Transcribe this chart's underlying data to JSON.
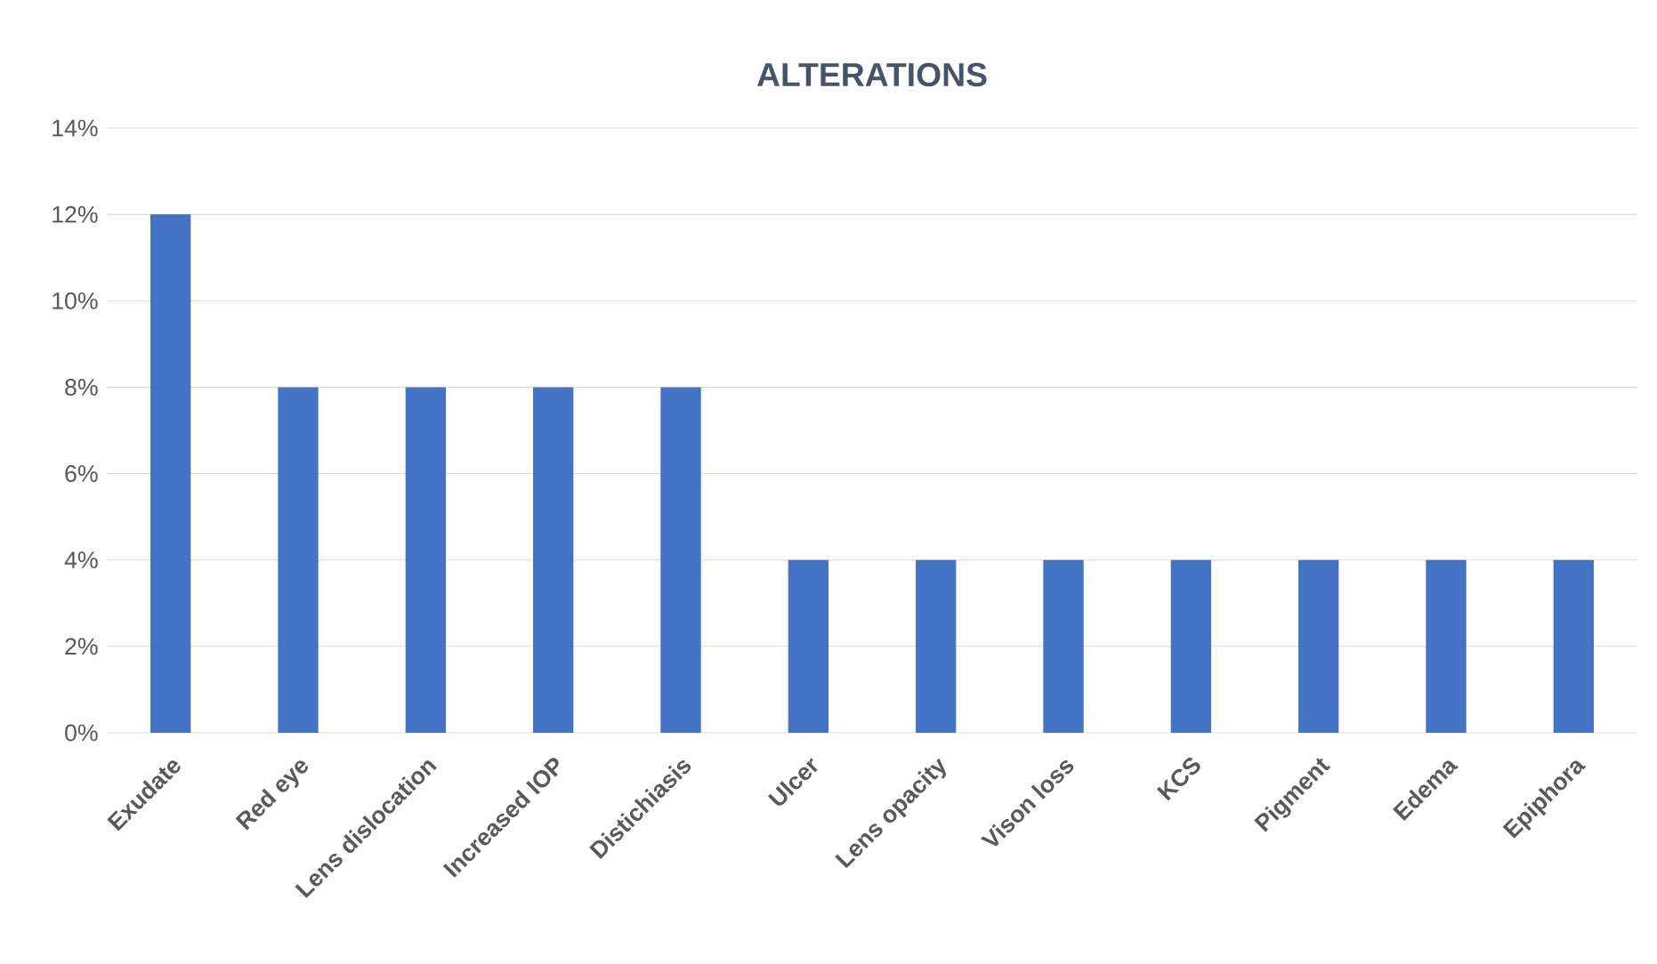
{
  "chart_data": {
    "type": "bar",
    "title": "ALTERATIONS",
    "categories": [
      "Exudate",
      "Red eye",
      "Lens dislocation",
      "Increased IOP",
      "Distichiasis",
      "Ulcer",
      "Lens opacity",
      "Vison loss",
      "KCS",
      "Pigment",
      "Edema",
      "Epiphora"
    ],
    "values": [
      12,
      8,
      8,
      8,
      8,
      4,
      4,
      4,
      4,
      4,
      4,
      4
    ],
    "color": "#4472c4",
    "ylim": [
      0,
      14
    ],
    "yticks": [
      {
        "value": 0,
        "label": "0%"
      },
      {
        "value": 2,
        "label": "2%"
      },
      {
        "value": 4,
        "label": "4%"
      },
      {
        "value": 6,
        "label": "6%"
      },
      {
        "value": 8,
        "label": "8%"
      },
      {
        "value": 10,
        "label": "10%"
      },
      {
        "value": 12,
        "label": "12%"
      },
      {
        "value": 14,
        "label": "14%"
      }
    ],
    "grid": "y"
  }
}
